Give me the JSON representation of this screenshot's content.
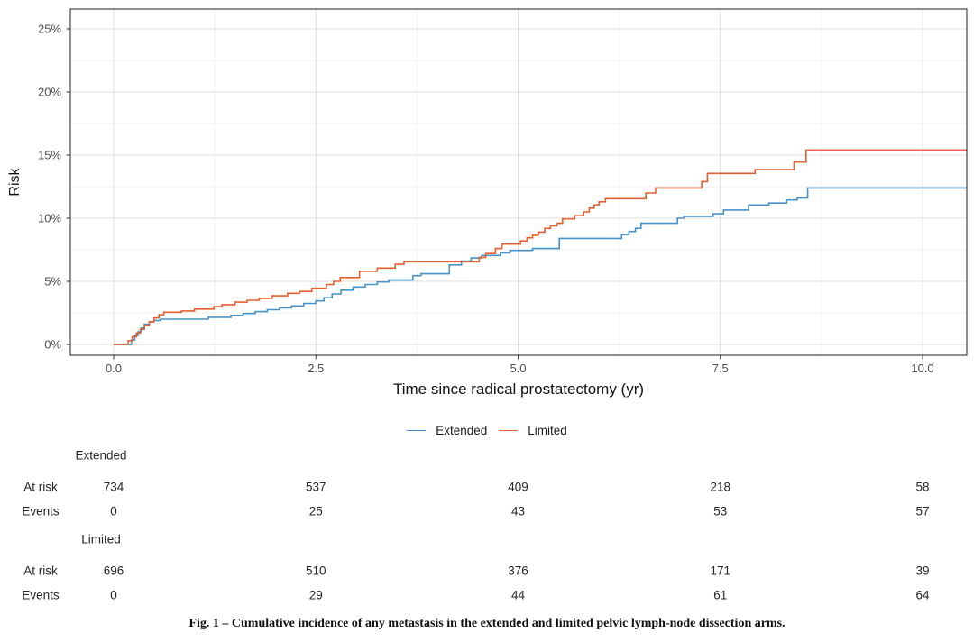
{
  "figure": {
    "caption": "Fig. 1 – Cumulative incidence of any metastasis in the extended and limited pelvic lymph-node dissection arms."
  },
  "chart_data": {
    "type": "line",
    "subtype": "step-cumulative-incidence",
    "title": "",
    "xlabel": "Time since radical prostatectomy (yr)",
    "ylabel": "Risk",
    "xlim": [
      -0.535,
      10.55
    ],
    "ylim": [
      -0.86,
      26.57
    ],
    "grid": true,
    "legend_position": "bottom",
    "x_ticks": {
      "values": [
        0,
        2.5,
        5,
        7.5,
        10
      ],
      "labels": [
        "0.0",
        "2.5",
        "5.0",
        "7.5",
        "10.0"
      ]
    },
    "x_minor": [
      1.25,
      3.75,
      6.25,
      8.75
    ],
    "y_ticks": {
      "values": [
        0,
        5,
        10,
        15,
        20,
        25
      ],
      "labels": [
        "0%",
        "5%",
        "10%",
        "15%",
        "20%",
        "25%"
      ]
    },
    "y_minor": [
      2.5,
      7.5,
      12.5,
      17.5,
      22.5
    ],
    "series": [
      {
        "name": "Extended",
        "color": "#4793C7",
        "points": [
          [
            0,
            0
          ],
          [
            0.18,
            0
          ],
          [
            0.22,
            0.35
          ],
          [
            0.26,
            0.7
          ],
          [
            0.3,
            1.0
          ],
          [
            0.34,
            1.3
          ],
          [
            0.38,
            1.6
          ],
          [
            0.44,
            1.78
          ],
          [
            0.5,
            1.9
          ],
          [
            0.58,
            2.0
          ],
          [
            1.17,
            2.15
          ],
          [
            1.45,
            2.3
          ],
          [
            1.6,
            2.45
          ],
          [
            1.75,
            2.6
          ],
          [
            1.9,
            2.75
          ],
          [
            2.05,
            2.9
          ],
          [
            2.2,
            3.05
          ],
          [
            2.35,
            3.25
          ],
          [
            2.5,
            3.45
          ],
          [
            2.6,
            3.7
          ],
          [
            2.7,
            4.0
          ],
          [
            2.81,
            4.3
          ],
          [
            2.96,
            4.55
          ],
          [
            3.11,
            4.75
          ],
          [
            3.26,
            4.95
          ],
          [
            3.4,
            5.1
          ],
          [
            3.7,
            5.45
          ],
          [
            3.8,
            5.6
          ],
          [
            4.15,
            6.3
          ],
          [
            4.3,
            6.6
          ],
          [
            4.42,
            6.85
          ],
          [
            4.55,
            7.05
          ],
          [
            4.78,
            7.25
          ],
          [
            4.9,
            7.45
          ],
          [
            5.18,
            7.6
          ],
          [
            5.51,
            8.4
          ],
          [
            6.28,
            8.7
          ],
          [
            6.37,
            8.95
          ],
          [
            6.45,
            9.2
          ],
          [
            6.52,
            9.6
          ],
          [
            6.97,
            10.0
          ],
          [
            7.05,
            10.15
          ],
          [
            7.41,
            10.35
          ],
          [
            7.54,
            10.65
          ],
          [
            7.85,
            11.05
          ],
          [
            8.1,
            11.2
          ],
          [
            8.32,
            11.45
          ],
          [
            8.45,
            11.6
          ],
          [
            8.58,
            12.4
          ],
          [
            10.55,
            12.4
          ]
        ]
      },
      {
        "name": "Limited",
        "color": "#E4602F",
        "points": [
          [
            0,
            0
          ],
          [
            0.15,
            0
          ],
          [
            0.18,
            0.3
          ],
          [
            0.23,
            0.6
          ],
          [
            0.28,
            0.9
          ],
          [
            0.33,
            1.2
          ],
          [
            0.38,
            1.5
          ],
          [
            0.44,
            1.8
          ],
          [
            0.5,
            2.1
          ],
          [
            0.56,
            2.35
          ],
          [
            0.62,
            2.55
          ],
          [
            0.84,
            2.65
          ],
          [
            1.0,
            2.8
          ],
          [
            1.24,
            3.0
          ],
          [
            1.34,
            3.15
          ],
          [
            1.5,
            3.35
          ],
          [
            1.65,
            3.5
          ],
          [
            1.8,
            3.65
          ],
          [
            1.96,
            3.85
          ],
          [
            2.15,
            4.05
          ],
          [
            2.3,
            4.2
          ],
          [
            2.45,
            4.45
          ],
          [
            2.63,
            4.75
          ],
          [
            2.72,
            5.0
          ],
          [
            2.8,
            5.3
          ],
          [
            3.04,
            5.8
          ],
          [
            3.26,
            6.05
          ],
          [
            3.48,
            6.35
          ],
          [
            3.59,
            6.55
          ],
          [
            4.52,
            6.9
          ],
          [
            4.6,
            7.2
          ],
          [
            4.72,
            7.6
          ],
          [
            4.8,
            7.95
          ],
          [
            5.03,
            8.2
          ],
          [
            5.11,
            8.45
          ],
          [
            5.18,
            8.65
          ],
          [
            5.25,
            8.9
          ],
          [
            5.33,
            9.2
          ],
          [
            5.4,
            9.4
          ],
          [
            5.48,
            9.6
          ],
          [
            5.55,
            9.95
          ],
          [
            5.7,
            10.2
          ],
          [
            5.81,
            10.5
          ],
          [
            5.88,
            10.8
          ],
          [
            5.94,
            11.05
          ],
          [
            6.0,
            11.3
          ],
          [
            6.08,
            11.55
          ],
          [
            6.58,
            12.0
          ],
          [
            6.7,
            12.4
          ],
          [
            7.27,
            12.9
          ],
          [
            7.34,
            13.55
          ],
          [
            7.93,
            13.85
          ],
          [
            8.41,
            14.45
          ],
          [
            8.56,
            15.4
          ],
          [
            10.55,
            15.4
          ]
        ]
      }
    ]
  },
  "risk_table": {
    "time_points": [
      0,
      2.5,
      5,
      7.5,
      10
    ],
    "groups": [
      {
        "name": "Extended",
        "rows": [
          {
            "label": "At risk",
            "values": [
              "734",
              "537",
              "409",
              "218",
              "58"
            ]
          },
          {
            "label": "Events",
            "values": [
              "0",
              "25",
              "43",
              "53",
              "57"
            ]
          }
        ]
      },
      {
        "name": "Limited",
        "rows": [
          {
            "label": "At risk",
            "values": [
              "696",
              "510",
              "376",
              "171",
              "39"
            ]
          },
          {
            "label": "Events",
            "values": [
              "0",
              "29",
              "44",
              "61",
              "64"
            ]
          }
        ]
      }
    ]
  },
  "theme": {
    "grid_major_color": "#DCDCDC",
    "grid_minor_color": "#EFEFEF",
    "panel_border_color": "#333333",
    "tick_label_color": "#4d4d4d",
    "axis_title_color": "#111111"
  }
}
